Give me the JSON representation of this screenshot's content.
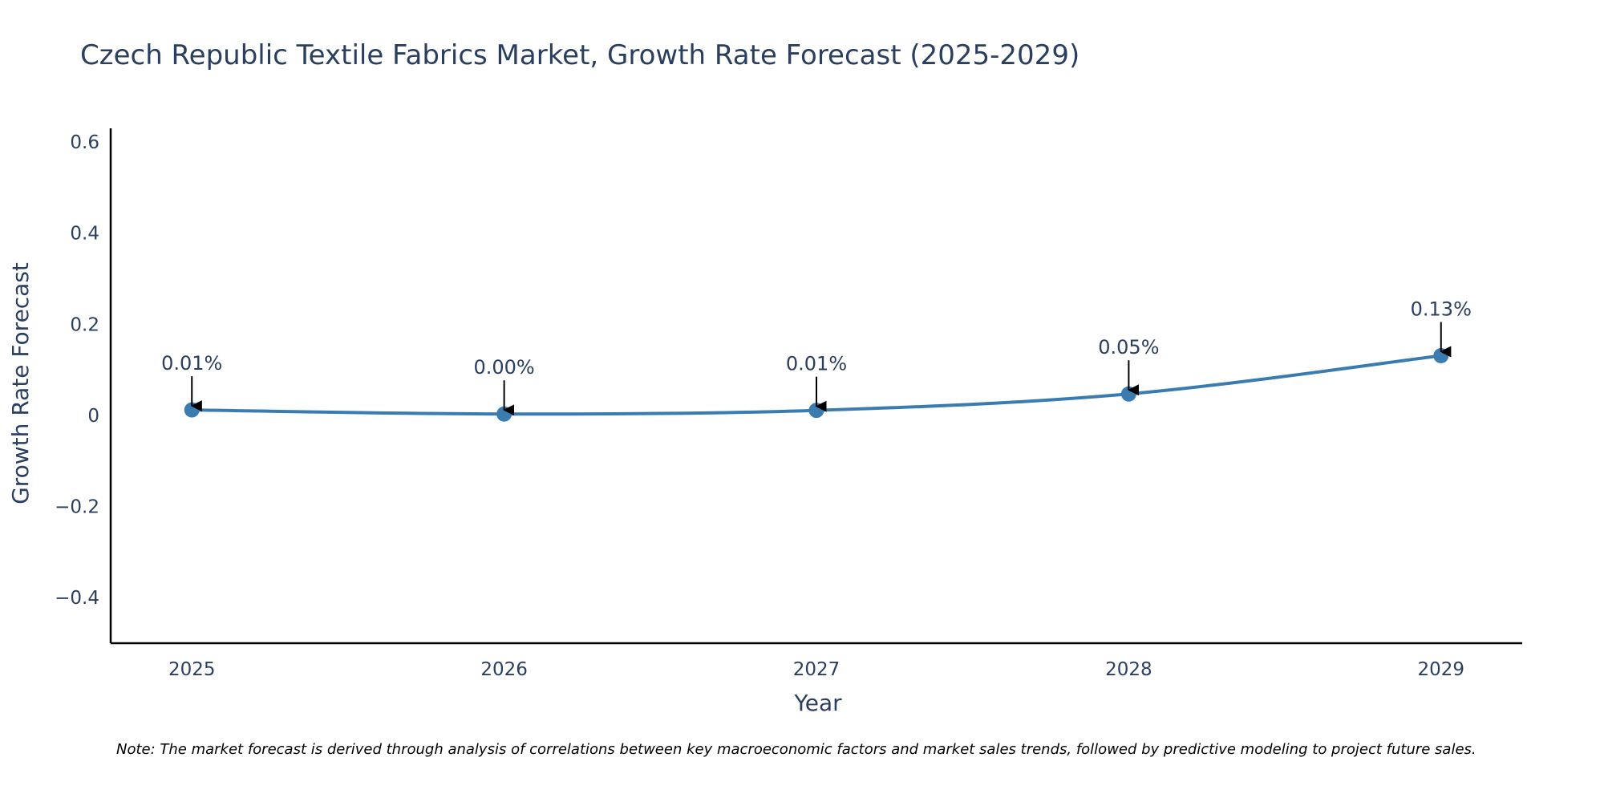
{
  "colors": {
    "line": "#3a7cb0",
    "marker": "#3a7cb0",
    "axis": "#000000",
    "text": "#2a3f5f",
    "arrow": "#000000",
    "background": "#ffffff"
  },
  "chart_data": {
    "type": "line",
    "title": "Czech Republic Textile Fabrics Market, Growth Rate Forecast (2025-2029)",
    "xlabel": "Year",
    "ylabel": "Growth Rate Forecast",
    "categories": [
      "2025",
      "2026",
      "2027",
      "2028",
      "2029"
    ],
    "x": [
      2025,
      2026,
      2027,
      2028,
      2029
    ],
    "series": [
      {
        "name": "Growth Rate Forecast",
        "values": [
          0.012,
          0.003,
          0.011,
          0.047,
          0.131
        ],
        "labels": [
          "0.01%",
          "0.00%",
          "0.01%",
          "0.05%",
          "0.13%"
        ]
      }
    ],
    "ylim": [
      -0.5,
      0.63
    ],
    "yticks": [
      -0.4,
      -0.2,
      0,
      0.2,
      0.4,
      0.6
    ],
    "ytick_labels": [
      "−0.4",
      "−0.2",
      "0",
      "0.2",
      "0.4",
      "0.6"
    ],
    "xlim": [
      2024.74,
      2029.26
    ],
    "grid": false,
    "legend": "none",
    "note": "Note: The market forecast is derived through analysis of correlations between key macroeconomic factors and market sales trends, followed by predictive modeling to project future sales."
  }
}
